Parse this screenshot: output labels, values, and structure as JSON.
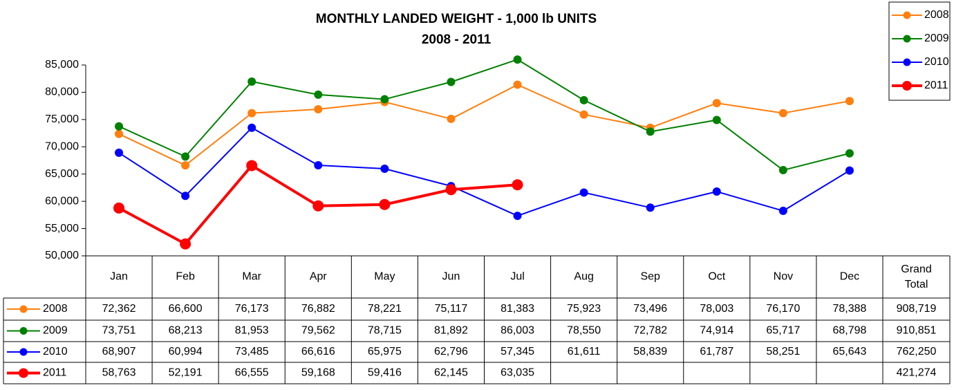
{
  "chart_data": {
    "type": "line",
    "title": "MONTHLY LANDED WEIGHT - 1,000 lb UNITS",
    "subtitle": "2008 - 2011",
    "categories": [
      "Jan",
      "Feb",
      "Mar",
      "Apr",
      "May",
      "Jun",
      "Jul",
      "Aug",
      "Sep",
      "Oct",
      "Nov",
      "Dec"
    ],
    "total_header": "Grand Total",
    "series": [
      {
        "name": "2008",
        "color": "#ff7f0e",
        "values": [
          72362,
          66600,
          76173,
          76882,
          78221,
          75117,
          81383,
          75923,
          73496,
          78003,
          76170,
          78388
        ],
        "value_labels": [
          "72,362",
          "66,600",
          "76,173",
          "76,882",
          "78,221",
          "75,117",
          "81,383",
          "75,923",
          "73,496",
          "78,003",
          "76,170",
          "78,388"
        ],
        "total": "908,719"
      },
      {
        "name": "2009",
        "color": "#008000",
        "values": [
          73751,
          68213,
          81953,
          79562,
          78715,
          81892,
          86003,
          78550,
          72782,
          74914,
          65717,
          68798
        ],
        "value_labels": [
          "73,751",
          "68,213",
          "81,953",
          "79,562",
          "78,715",
          "81,892",
          "86,003",
          "78,550",
          "72,782",
          "74,914",
          "65,717",
          "68,798"
        ],
        "total": "910,851"
      },
      {
        "name": "2010",
        "color": "#0000ff",
        "values": [
          68907,
          60994,
          73485,
          66616,
          65975,
          62796,
          57345,
          61611,
          58839,
          61787,
          58251,
          65643
        ],
        "value_labels": [
          "68,907",
          "60,994",
          "73,485",
          "66,616",
          "65,975",
          "62,796",
          "57,345",
          "61,611",
          "58,839",
          "61,787",
          "58,251",
          "65,643"
        ],
        "total": "762,250"
      },
      {
        "name": "2011",
        "color": "#ff0000",
        "values": [
          58763,
          52191,
          66555,
          59168,
          59416,
          62145,
          63035,
          null,
          null,
          null,
          null,
          null
        ],
        "value_labels": [
          "58,763",
          "52,191",
          "66,555",
          "59,168",
          "59,416",
          "62,145",
          "63,035",
          null,
          null,
          null,
          null,
          null
        ],
        "total": "421,274"
      }
    ],
    "ylim": [
      50000,
      85000
    ],
    "yticks": [
      {
        "value": 50000,
        "label": "50,000"
      },
      {
        "value": 55000,
        "label": "55,000"
      },
      {
        "value": 60000,
        "label": "60,000"
      },
      {
        "value": 65000,
        "label": "65,000"
      },
      {
        "value": 70000,
        "label": "70,000"
      },
      {
        "value": 75000,
        "label": "75,000"
      },
      {
        "value": 80000,
        "label": "80,000"
      },
      {
        "value": 85000,
        "label": "85,000"
      }
    ],
    "grid": false,
    "legend": "top-right"
  }
}
